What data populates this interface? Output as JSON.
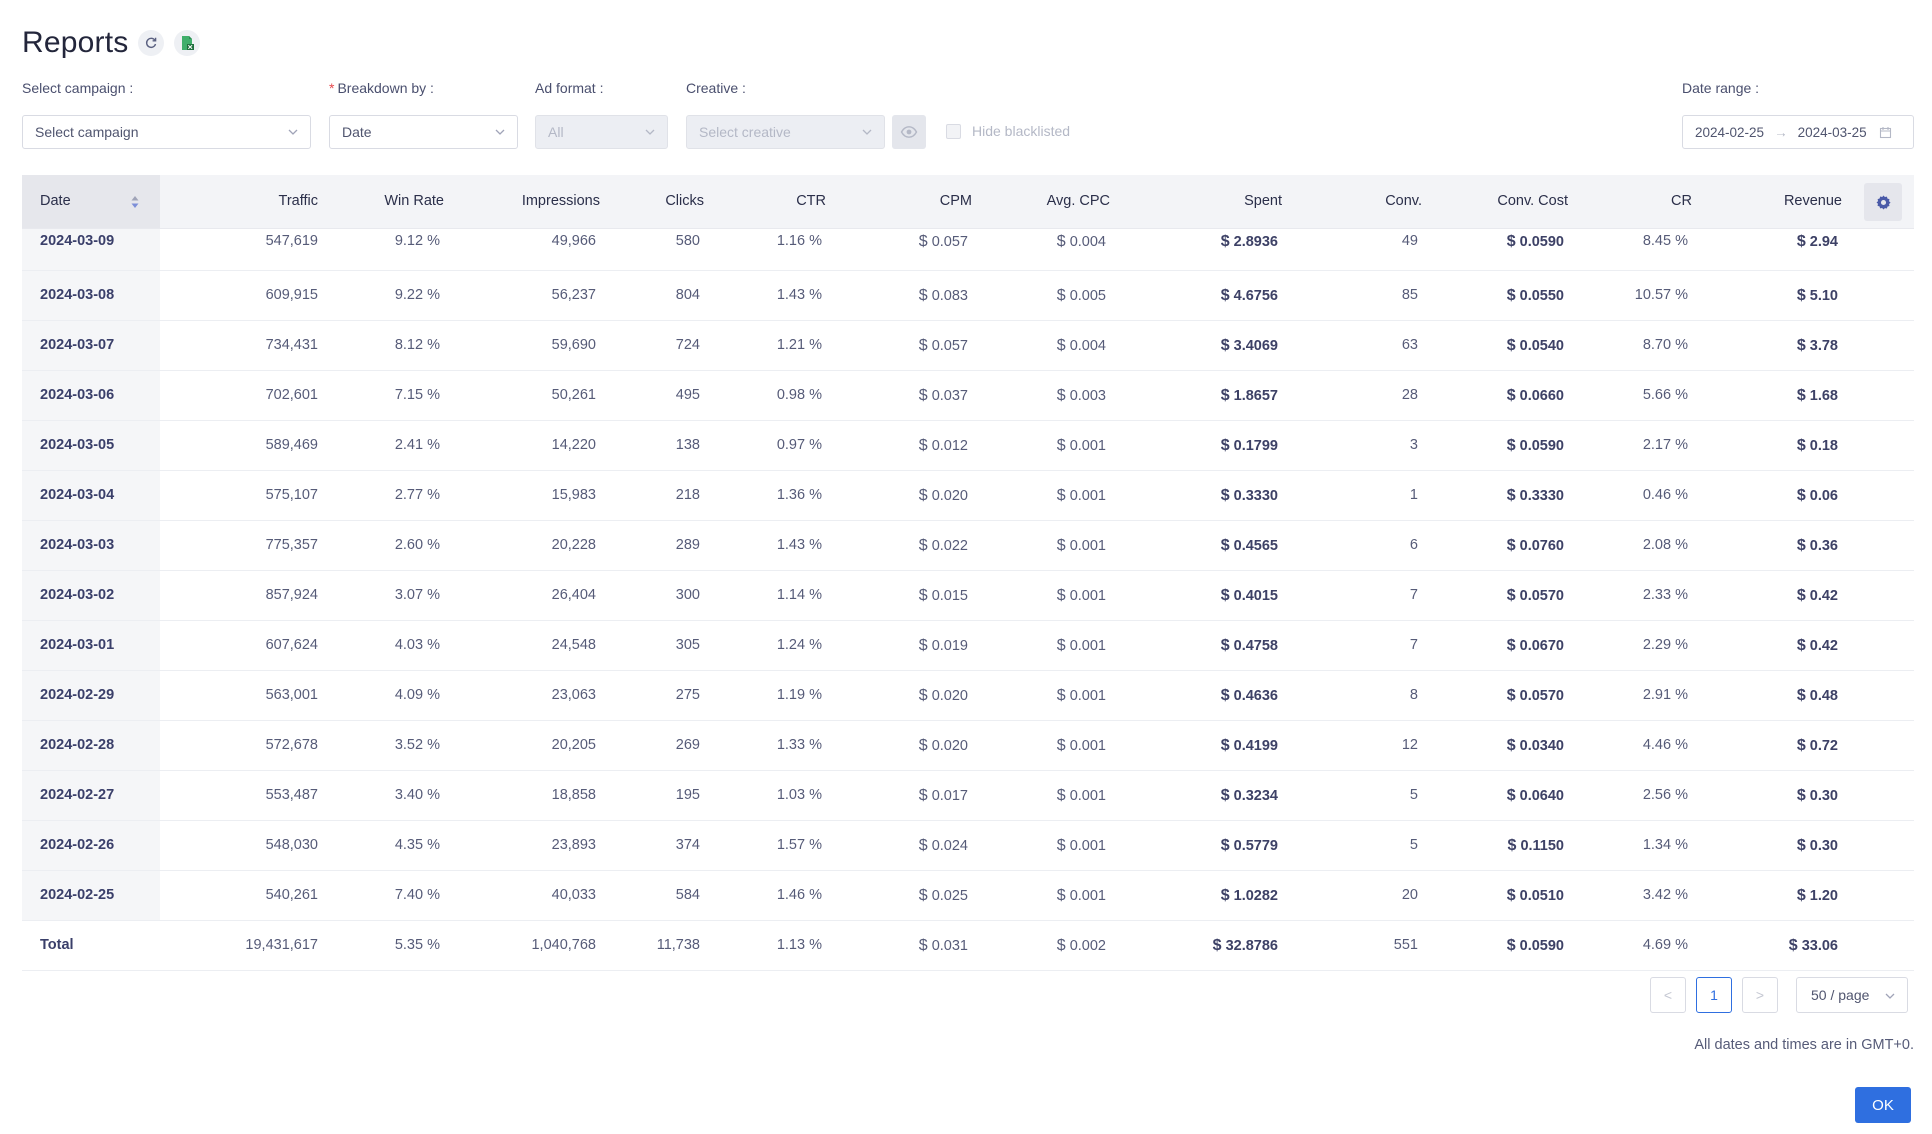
{
  "header": {
    "title": "Reports",
    "refresh_icon": "refresh-icon",
    "export_icon": "excel-export-icon"
  },
  "filters": {
    "campaign": {
      "label": "Select campaign :",
      "placeholder": "Select campaign"
    },
    "breakdown": {
      "label": "Breakdown by :",
      "required_mark": "*",
      "value": "Date"
    },
    "ad_format": {
      "label": "Ad format :",
      "value": "All"
    },
    "creative": {
      "label": "Creative :",
      "placeholder": "Select creative"
    },
    "hide_blacklisted": {
      "label": "Hide blacklisted",
      "checked": false
    },
    "date_range": {
      "label": "Date range :",
      "start": "2024-02-25",
      "end": "2024-03-25",
      "separator": "→"
    }
  },
  "table": {
    "columns": [
      "Date",
      "Traffic",
      "Win Rate",
      "Impressions",
      "Clicks",
      "CTR",
      "CPM",
      "Avg. CPC",
      "Spent",
      "Conv.",
      "Conv. Cost",
      "CR",
      "Revenue"
    ],
    "currency": "$",
    "rows": [
      {
        "date": "2024-03-09",
        "traffic": "547,619",
        "win_rate": "9.12 %",
        "impressions": "49,966",
        "clicks": "580",
        "ctr": "1.16 %",
        "cpm": "0.057",
        "avg_cpc": "0.004",
        "spent": "2.8936",
        "conv": "49",
        "conv_cost": "0.0590",
        "cr": "8.45 %",
        "revenue": "2.94"
      },
      {
        "date": "2024-03-08",
        "traffic": "609,915",
        "win_rate": "9.22 %",
        "impressions": "56,237",
        "clicks": "804",
        "ctr": "1.43 %",
        "cpm": "0.083",
        "avg_cpc": "0.005",
        "spent": "4.6756",
        "conv": "85",
        "conv_cost": "0.0550",
        "cr": "10.57 %",
        "revenue": "5.10"
      },
      {
        "date": "2024-03-07",
        "traffic": "734,431",
        "win_rate": "8.12 %",
        "impressions": "59,690",
        "clicks": "724",
        "ctr": "1.21 %",
        "cpm": "0.057",
        "avg_cpc": "0.004",
        "spent": "3.4069",
        "conv": "63",
        "conv_cost": "0.0540",
        "cr": "8.70 %",
        "revenue": "3.78"
      },
      {
        "date": "2024-03-06",
        "traffic": "702,601",
        "win_rate": "7.15 %",
        "impressions": "50,261",
        "clicks": "495",
        "ctr": "0.98 %",
        "cpm": "0.037",
        "avg_cpc": "0.003",
        "spent": "1.8657",
        "conv": "28",
        "conv_cost": "0.0660",
        "cr": "5.66 %",
        "revenue": "1.68"
      },
      {
        "date": "2024-03-05",
        "traffic": "589,469",
        "win_rate": "2.41 %",
        "impressions": "14,220",
        "clicks": "138",
        "ctr": "0.97 %",
        "cpm": "0.012",
        "avg_cpc": "0.001",
        "spent": "0.1799",
        "conv": "3",
        "conv_cost": "0.0590",
        "cr": "2.17 %",
        "revenue": "0.18"
      },
      {
        "date": "2024-03-04",
        "traffic": "575,107",
        "win_rate": "2.77 %",
        "impressions": "15,983",
        "clicks": "218",
        "ctr": "1.36 %",
        "cpm": "0.020",
        "avg_cpc": "0.001",
        "spent": "0.3330",
        "conv": "1",
        "conv_cost": "0.3330",
        "cr": "0.46 %",
        "revenue": "0.06"
      },
      {
        "date": "2024-03-03",
        "traffic": "775,357",
        "win_rate": "2.60 %",
        "impressions": "20,228",
        "clicks": "289",
        "ctr": "1.43 %",
        "cpm": "0.022",
        "avg_cpc": "0.001",
        "spent": "0.4565",
        "conv": "6",
        "conv_cost": "0.0760",
        "cr": "2.08 %",
        "revenue": "0.36"
      },
      {
        "date": "2024-03-02",
        "traffic": "857,924",
        "win_rate": "3.07 %",
        "impressions": "26,404",
        "clicks": "300",
        "ctr": "1.14 %",
        "cpm": "0.015",
        "avg_cpc": "0.001",
        "spent": "0.4015",
        "conv": "7",
        "conv_cost": "0.0570",
        "cr": "2.33 %",
        "revenue": "0.42"
      },
      {
        "date": "2024-03-01",
        "traffic": "607,624",
        "win_rate": "4.03 %",
        "impressions": "24,548",
        "clicks": "305",
        "ctr": "1.24 %",
        "cpm": "0.019",
        "avg_cpc": "0.001",
        "spent": "0.4758",
        "conv": "7",
        "conv_cost": "0.0670",
        "cr": "2.29 %",
        "revenue": "0.42"
      },
      {
        "date": "2024-02-29",
        "traffic": "563,001",
        "win_rate": "4.09 %",
        "impressions": "23,063",
        "clicks": "275",
        "ctr": "1.19 %",
        "cpm": "0.020",
        "avg_cpc": "0.001",
        "spent": "0.4636",
        "conv": "8",
        "conv_cost": "0.0570",
        "cr": "2.91 %",
        "revenue": "0.48"
      },
      {
        "date": "2024-02-28",
        "traffic": "572,678",
        "win_rate": "3.52 %",
        "impressions": "20,205",
        "clicks": "269",
        "ctr": "1.33 %",
        "cpm": "0.020",
        "avg_cpc": "0.001",
        "spent": "0.4199",
        "conv": "12",
        "conv_cost": "0.0340",
        "cr": "4.46 %",
        "revenue": "0.72"
      },
      {
        "date": "2024-02-27",
        "traffic": "553,487",
        "win_rate": "3.40 %",
        "impressions": "18,858",
        "clicks": "195",
        "ctr": "1.03 %",
        "cpm": "0.017",
        "avg_cpc": "0.001",
        "spent": "0.3234",
        "conv": "5",
        "conv_cost": "0.0640",
        "cr": "2.56 %",
        "revenue": "0.30"
      },
      {
        "date": "2024-02-26",
        "traffic": "548,030",
        "win_rate": "4.35 %",
        "impressions": "23,893",
        "clicks": "374",
        "ctr": "1.57 %",
        "cpm": "0.024",
        "avg_cpc": "0.001",
        "spent": "0.5779",
        "conv": "5",
        "conv_cost": "0.1150",
        "cr": "1.34 %",
        "revenue": "0.30"
      },
      {
        "date": "2024-02-25",
        "traffic": "540,261",
        "win_rate": "7.40 %",
        "impressions": "40,033",
        "clicks": "584",
        "ctr": "1.46 %",
        "cpm": "0.025",
        "avg_cpc": "0.001",
        "spent": "1.0282",
        "conv": "20",
        "conv_cost": "0.0510",
        "cr": "3.42 %",
        "revenue": "1.20"
      }
    ],
    "total": {
      "date": "Total",
      "traffic": "19,431,617",
      "win_rate": "5.35 %",
      "impressions": "1,040,768",
      "clicks": "11,738",
      "ctr": "1.13 %",
      "cpm": "0.031",
      "avg_cpc": "0.002",
      "spent": "32.8786",
      "conv": "551",
      "conv_cost": "0.0590",
      "cr": "4.69 %",
      "revenue": "33.06"
    }
  },
  "pagination": {
    "prev": "<",
    "current_page": "1",
    "next": ">",
    "page_size": "50 / page"
  },
  "footer": {
    "timezone_note": "All dates and times are in GMT+0.",
    "ok_label": "OK"
  },
  "colors": {
    "accent": "#2f6fe0",
    "header_bg": "#f3f4f7",
    "text": "#3a3f63"
  }
}
